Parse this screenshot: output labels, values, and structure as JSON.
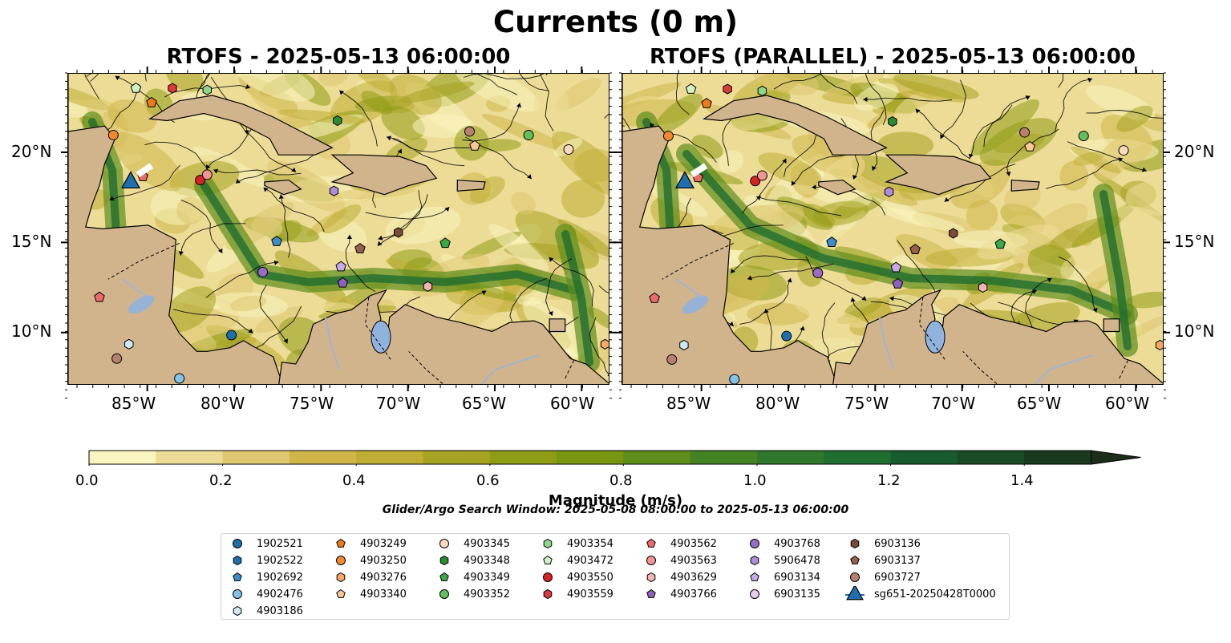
{
  "title": "Currents (0 m)",
  "panels": [
    {
      "subtitle": "RTOFS - 2025-05-13 06:00:00"
    },
    {
      "subtitle": "RTOFS (PARALLEL) - 2025-05-13 06:00:00"
    }
  ],
  "lon_labels": [
    "85°W",
    "80°W",
    "75°W",
    "70°W",
    "65°W",
    "60°W"
  ],
  "lat_labels": [
    "20°N",
    "15°N",
    "10°N"
  ],
  "colorbar": {
    "ticks": [
      "0.0",
      "0.2",
      "0.4",
      "0.6",
      "0.8",
      "1.0",
      "1.2",
      "1.4"
    ],
    "label": "Magnitude (m/s)",
    "colors": [
      "#faf4c0",
      "#ecdc96",
      "#dfc670",
      "#d0b64a",
      "#bfad35",
      "#a6a323",
      "#8f9d16",
      "#789611",
      "#5e8d1b",
      "#438324",
      "#2f782c",
      "#1f6d2f",
      "#185c2d",
      "#184b26",
      "#1a3a20",
      "#1a2e1a"
    ]
  },
  "search_window": "Glider/Argo Search Window: 2025-05-08 08:00:00 to 2025-05-13 06:00:00",
  "legend": [
    {
      "label": "1902521",
      "marker": "circle",
      "color": "#1f6fb0"
    },
    {
      "label": "1902522",
      "marker": "hexagon",
      "color": "#1f6fb0"
    },
    {
      "label": "1902692",
      "marker": "pentagon",
      "color": "#3d8ccb"
    },
    {
      "label": "4902476",
      "marker": "circle",
      "color": "#86c3ea"
    },
    {
      "label": "4903186",
      "marker": "hexagon",
      "color": "#cfe9f8"
    },
    {
      "label": "4903249",
      "marker": "pentagon",
      "color": "#f07a1a"
    },
    {
      "label": "4903250",
      "marker": "circle",
      "color": "#f5882e"
    },
    {
      "label": "4903276",
      "marker": "hexagon",
      "color": "#f8a864"
    },
    {
      "label": "4903340",
      "marker": "pentagon",
      "color": "#fcc799"
    },
    {
      "label": "4903345",
      "marker": "circle",
      "color": "#fcd9bd"
    },
    {
      "label": "4903348",
      "marker": "hexagon",
      "color": "#2a8c32"
    },
    {
      "label": "4903349",
      "marker": "pentagon",
      "color": "#3caa44"
    },
    {
      "label": "4903352",
      "marker": "circle",
      "color": "#62c05c"
    },
    {
      "label": "4903354",
      "marker": "hexagon",
      "color": "#90d68a"
    },
    {
      "label": "4903472",
      "marker": "pentagon",
      "color": "#d2f1c4"
    },
    {
      "label": "4903550",
      "marker": "circle",
      "color": "#d62426"
    },
    {
      "label": "4903559",
      "marker": "hexagon",
      "color": "#d93a3a"
    },
    {
      "label": "4903562",
      "marker": "pentagon",
      "color": "#ec6a6a"
    },
    {
      "label": "4903563",
      "marker": "circle",
      "color": "#f49494"
    },
    {
      "label": "4903629",
      "marker": "hexagon",
      "color": "#f7b4b4"
    },
    {
      "label": "4903766",
      "marker": "pentagon",
      "color": "#9060c0"
    },
    {
      "label": "4903768",
      "marker": "circle",
      "color": "#9b6bc9"
    },
    {
      "label": "5906478",
      "marker": "hexagon",
      "color": "#b08cdb"
    },
    {
      "label": "6903134",
      "marker": "pentagon",
      "color": "#c9a9ea"
    },
    {
      "label": "6903135",
      "marker": "circle",
      "color": "#e6cbf5"
    },
    {
      "label": "6903136",
      "marker": "hexagon",
      "color": "#7b4a38"
    },
    {
      "label": "6903137",
      "marker": "pentagon",
      "color": "#96604d"
    },
    {
      "label": "6903727",
      "marker": "circle",
      "color": "#b8806d"
    },
    {
      "label": "sg651-20250428T0000",
      "marker": "triangle",
      "color": "#1f6fb0"
    }
  ],
  "colors": {
    "land": "#d2b48c",
    "lake": "#8fb2de",
    "river": "#9fb5d0"
  }
}
